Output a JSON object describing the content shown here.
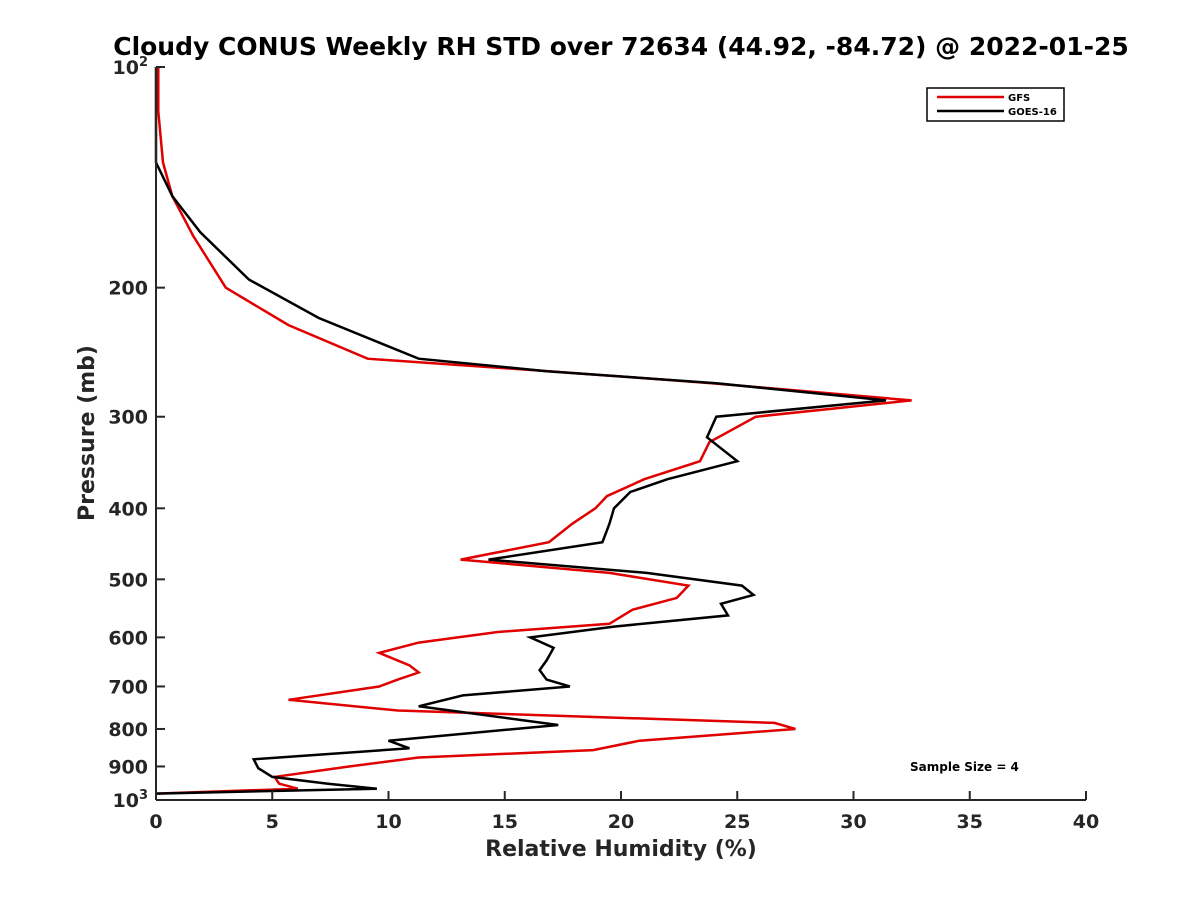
{
  "chart_data": {
    "type": "line",
    "title": "Cloudy CONUS Weekly RH STD over 72634 (44.92, -84.72) @ 2022-01-25",
    "xlabel": "Relative Humidity (%)",
    "ylabel": "Pressure (mb)",
    "xlim": [
      0,
      40
    ],
    "ylim": [
      100,
      1000
    ],
    "y_scale": "log",
    "y_reversed": true,
    "grid": false,
    "legend_position": "top-right",
    "x_ticks": [
      0,
      5,
      10,
      15,
      20,
      25,
      30,
      35,
      40
    ],
    "x_tick_labels": [
      "0",
      "5",
      "10",
      "15",
      "20",
      "25",
      "30",
      "35",
      "40"
    ],
    "y_ticks": [
      100,
      200,
      300,
      400,
      500,
      600,
      700,
      800,
      900,
      1000
    ],
    "y_tick_labels": [
      {
        "base": "10",
        "exp": "2"
      },
      {
        "base": "200",
        "exp": ""
      },
      {
        "base": "300",
        "exp": ""
      },
      {
        "base": "400",
        "exp": ""
      },
      {
        "base": "500",
        "exp": ""
      },
      {
        "base": "600",
        "exp": ""
      },
      {
        "base": "700",
        "exp": ""
      },
      {
        "base": "800",
        "exp": ""
      },
      {
        "base": "900",
        "exp": ""
      },
      {
        "base": "10",
        "exp": "3"
      }
    ],
    "annotation": "Sample Size = 4",
    "series": [
      {
        "name": "GFS",
        "color": "#e00000",
        "points": [
          [
            0.1,
            100
          ],
          [
            0.1,
            115
          ],
          [
            0.3,
            135
          ],
          [
            0.7,
            150
          ],
          [
            1.6,
            170
          ],
          [
            3.0,
            200
          ],
          [
            5.7,
            225
          ],
          [
            9.1,
            250
          ],
          [
            16.9,
            260
          ],
          [
            23.9,
            270
          ],
          [
            32.5,
            285
          ],
          [
            25.8,
            300
          ],
          [
            23.8,
            325
          ],
          [
            23.4,
            345
          ],
          [
            21.0,
            365
          ],
          [
            19.4,
            385
          ],
          [
            18.9,
            400
          ],
          [
            17.9,
            420
          ],
          [
            16.9,
            445
          ],
          [
            13.1,
            470
          ],
          [
            19.5,
            490
          ],
          [
            22.9,
            510
          ],
          [
            22.4,
            530
          ],
          [
            20.5,
            550
          ],
          [
            19.5,
            575
          ],
          [
            14.7,
            590
          ],
          [
            11.3,
            610
          ],
          [
            9.6,
            630
          ],
          [
            10.9,
            655
          ],
          [
            11.3,
            670
          ],
          [
            10.4,
            685
          ],
          [
            9.6,
            700
          ],
          [
            5.7,
            730
          ],
          [
            10.4,
            755
          ],
          [
            26.6,
            785
          ],
          [
            27.5,
            800
          ],
          [
            20.8,
            830
          ],
          [
            18.8,
            855
          ],
          [
            11.3,
            875
          ],
          [
            8.3,
            900
          ],
          [
            5.1,
            930
          ],
          [
            5.3,
            950
          ],
          [
            6.1,
            965
          ],
          [
            0.0,
            980
          ]
        ]
      },
      {
        "name": "GOES-16",
        "color": "#000000",
        "points": [
          [
            0.0,
            100
          ],
          [
            0.0,
            115
          ],
          [
            0.0,
            135
          ],
          [
            0.7,
            150
          ],
          [
            1.9,
            168
          ],
          [
            4.0,
            195
          ],
          [
            7.0,
            220
          ],
          [
            11.3,
            250
          ],
          [
            16.8,
            260
          ],
          [
            24.1,
            270
          ],
          [
            31.4,
            285
          ],
          [
            24.1,
            300
          ],
          [
            23.7,
            320
          ],
          [
            25.0,
            345
          ],
          [
            22.0,
            365
          ],
          [
            20.4,
            380
          ],
          [
            19.7,
            400
          ],
          [
            19.5,
            420
          ],
          [
            19.2,
            445
          ],
          [
            14.3,
            470
          ],
          [
            21.1,
            490
          ],
          [
            25.2,
            510
          ],
          [
            25.7,
            525
          ],
          [
            24.3,
            540
          ],
          [
            24.6,
            560
          ],
          [
            19.7,
            580
          ],
          [
            16.1,
            600
          ],
          [
            17.1,
            620
          ],
          [
            16.8,
            645
          ],
          [
            16.5,
            665
          ],
          [
            16.8,
            685
          ],
          [
            17.8,
            700
          ],
          [
            13.2,
            720
          ],
          [
            11.3,
            745
          ],
          [
            17.3,
            790
          ],
          [
            10.0,
            830
          ],
          [
            10.9,
            850
          ],
          [
            4.2,
            880
          ],
          [
            4.4,
            905
          ],
          [
            5.0,
            930
          ],
          [
            7.4,
            950
          ],
          [
            9.5,
            965
          ],
          [
            0.0,
            980
          ]
        ]
      }
    ]
  }
}
